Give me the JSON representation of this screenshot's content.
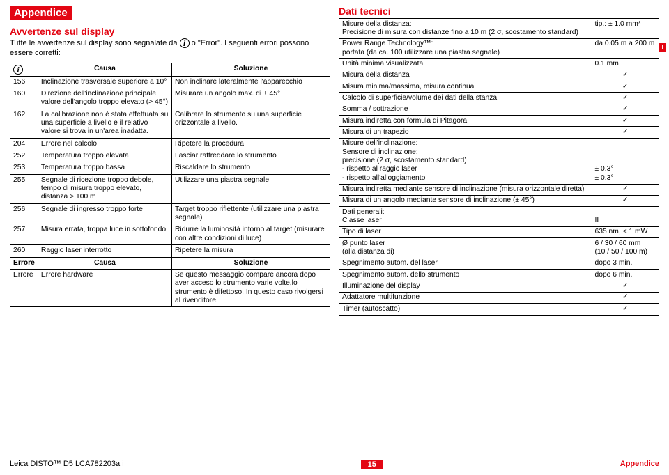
{
  "marker": "I",
  "left": {
    "header": "Appendice",
    "sub": "Avvertenze sul display",
    "intro1": "Tutte le avvertenze sul display sono segnalate da ",
    "intro2": " o \"Error\". I seguenti errori possono essere corretti:",
    "th_code": "",
    "th_cause": "Causa",
    "th_sol": "Soluzione",
    "rows": [
      {
        "c": "156",
        "a": "Inclinazione trasversale superiore a 10°",
        "s": "Non inclinare lateralmente l'apparecchio"
      },
      {
        "c": "160",
        "a": "Direzione dell'inclinazione principale, valore dell'angolo troppo elevato (> 45°)",
        "s": "Misurare un angolo max. di ± 45°"
      },
      {
        "c": "162",
        "a": "La calibrazione non è stata effettuata su una superficie a livello e il relativo valore si trova in un'area inadatta.",
        "s": "Calibrare lo strumento su una superficie orizzontale a livello."
      },
      {
        "c": "204",
        "a": "Errore nel calcolo",
        "s": "Ripetere la procedura"
      },
      {
        "c": "252",
        "a": "Temperatura troppo elevata",
        "s": "Lasciar raffreddare lo strumento"
      },
      {
        "c": "253",
        "a": "Temperatura troppo bassa",
        "s": "Riscaldare lo strumento"
      },
      {
        "c": "255",
        "a": "Segnale di ricezione troppo debole, tempo di misura troppo elevato, distanza > 100 m",
        "s": "Utilizzare una piastra segnale"
      },
      {
        "c": "256",
        "a": "Segnale di ingresso troppo forte",
        "s": "Target troppo riflettente (utilizzare una piastra segnale)"
      },
      {
        "c": "257",
        "a": "Misura errata, troppa luce in sottofondo",
        "s": "Ridurre la luminosità intorno al target (misurare con altre condizioni di luce)"
      },
      {
        "c": "260",
        "a": "Raggio laser interrotto",
        "s": "Ripetere la misura"
      }
    ],
    "err_hdr_c": "Errore",
    "err_hdr_a": "Causa",
    "err_hdr_s": "Soluzione",
    "err_row_c": "Errore",
    "err_row_a": "Errore hardware",
    "err_row_s": "Se questo messaggio compare ancora dopo aver acceso lo strumento varie volte,lo strumento è difettoso. In questo caso rivolgersi al rivenditore."
  },
  "right": {
    "sub": "Dati tecnici",
    "rows": [
      {
        "a": "Misure della distanza:\nPrecisione di misura con distanze fino a 10 m (2 σ, scostamento standard)",
        "b": "tip.: ± 1.0 mm*"
      },
      {
        "a": "Power Range Technology™:\nportata (da ca. 100 utilizzare una piastra segnale)",
        "b": "da 0.05 m a 200 m"
      },
      {
        "a": "Unità minima visualizzata",
        "b": "0.1 mm"
      },
      {
        "a": "Misura della distanza",
        "b": "✓",
        "t": 1
      },
      {
        "a": "Misura minima/massima, misura continua",
        "b": "✓",
        "t": 1
      },
      {
        "a": "Calcolo di superficie/volume dei dati della stanza",
        "b": "✓",
        "t": 1
      },
      {
        "a": "Somma / sottrazione",
        "b": "✓",
        "t": 1
      },
      {
        "a": "Misura indiretta con formula di Pitagora",
        "b": "✓",
        "t": 1
      },
      {
        "a": "Misura di un trapezio",
        "b": "✓",
        "t": 1
      },
      {
        "a": "Misure dell'inclinazione:\nSensore di inclinazione:\nprecisione (2 σ, scostamento standard)\n- rispetto al raggio laser\n- rispetto all'alloggiamento",
        "b": "\n\n\n± 0.3°\n± 0.3°"
      },
      {
        "a": "Misura indiretta mediante sensore di inclinazione (misura orizzontale diretta)",
        "b": "✓",
        "t": 1
      },
      {
        "a": "Misura di un angolo mediante sensore di inclinazione (± 45°)",
        "b": "✓",
        "t": 1
      },
      {
        "a": "Dati generali:\nClasse laser",
        "b": "\nII"
      },
      {
        "a": "Tipo di laser",
        "b": "635 nm, < 1 mW"
      },
      {
        "a": "Ø punto laser\n(alla distanza di)",
        "b": "6 / 30 / 60 mm\n(10 / 50 / 100 m)"
      },
      {
        "a": "Spegnimento autom. del laser",
        "b": "dopo 3 min."
      },
      {
        "a": "Spegnimento autom. dello strumento",
        "b": "dopo 6 min."
      },
      {
        "a": "Illuminazione del display",
        "b": "✓",
        "t": 1
      },
      {
        "a": "Adattatore multifunzione",
        "b": "✓",
        "t": 1
      },
      {
        "a": "Timer (autoscatto)",
        "b": "✓",
        "t": 1
      }
    ]
  },
  "footer": {
    "left": "Leica DISTO™ D5 LCA782203a i",
    "page": "15",
    "right": "Appendice"
  }
}
